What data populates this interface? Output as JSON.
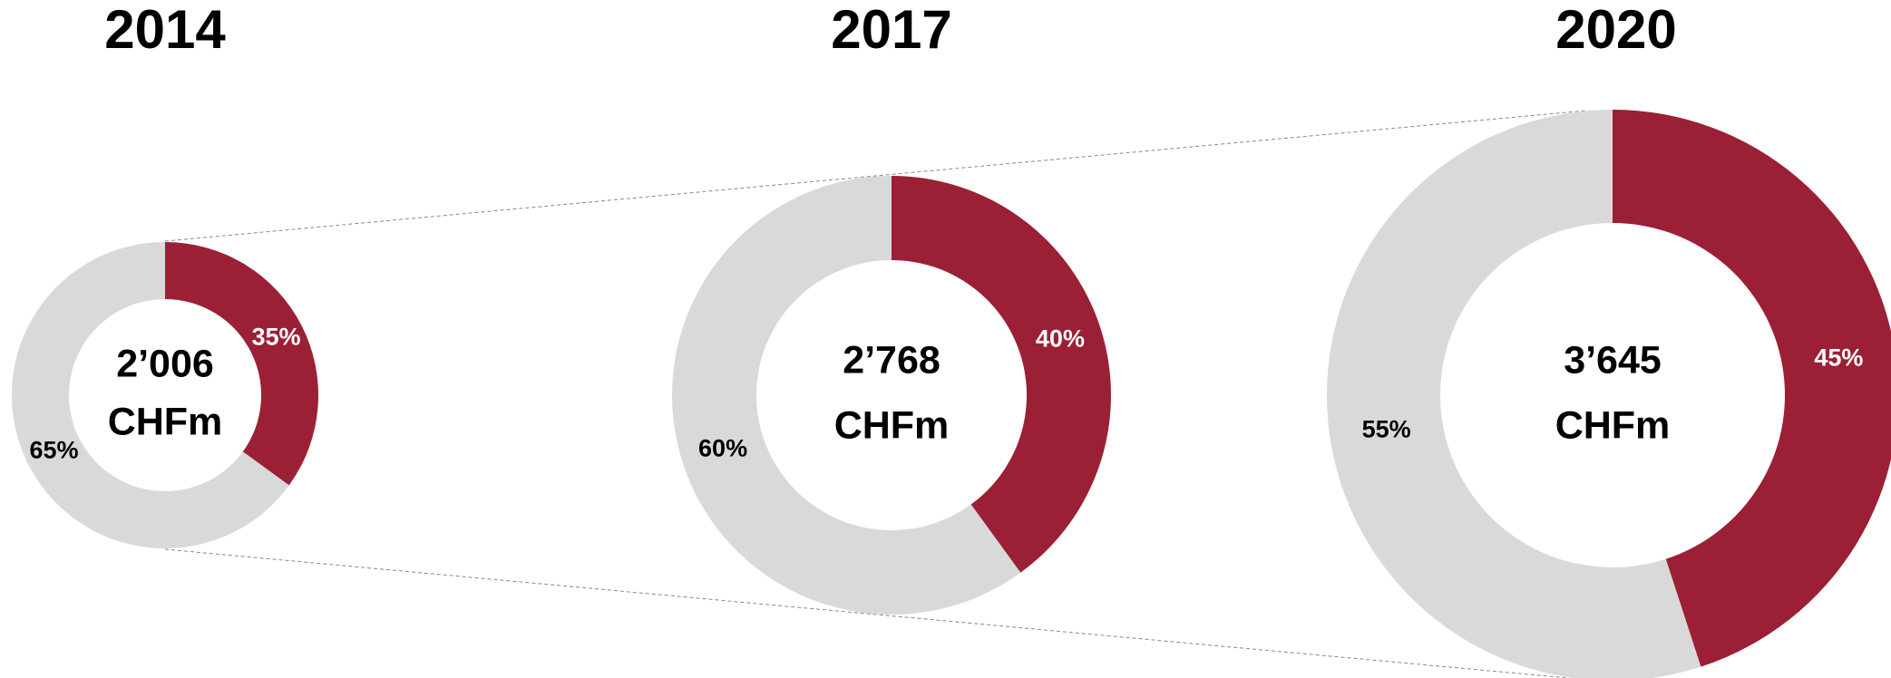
{
  "chart_data": [
    {
      "type": "pie",
      "title": "2014",
      "center_text": [
        "2’006",
        "CHFm"
      ],
      "values": [
        35,
        65
      ],
      "value_labels": [
        "35%",
        "65%"
      ],
      "colors": [
        "#9b2035",
        "#d9d9d9"
      ]
    },
    {
      "type": "pie",
      "title": "2017",
      "center_text": [
        "2’768",
        "CHFm"
      ],
      "values": [
        40,
        60
      ],
      "value_labels": [
        "40%",
        "60%"
      ],
      "colors": [
        "#9b2035",
        "#d9d9d9"
      ]
    },
    {
      "type": "pie",
      "title": "2020",
      "center_text": [
        "3’645",
        "CHFm"
      ],
      "values": [
        45,
        55
      ],
      "value_labels": [
        "45%",
        "55%"
      ],
      "colors": [
        "#9b2035",
        "#d9d9d9"
      ]
    }
  ]
}
